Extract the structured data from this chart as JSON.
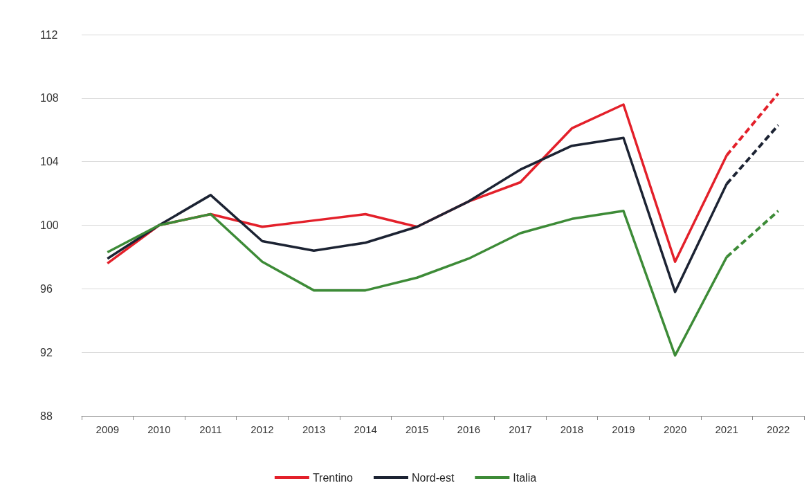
{
  "chart_data": {
    "type": "line",
    "categories": [
      "2009",
      "2010",
      "2011",
      "2012",
      "2013",
      "2014",
      "2015",
      "2016",
      "2017",
      "2018",
      "2019",
      "2020",
      "2021",
      "2022"
    ],
    "series": [
      {
        "name": "Trentino",
        "color": "#e3202a",
        "values": [
          97.6,
          100,
          100.7,
          99.9,
          100.3,
          100.7,
          99.9,
          101.5,
          102.7,
          106.1,
          107.6,
          97.7,
          104.4,
          null
        ]
      },
      {
        "name": "Nord-est",
        "color": "#1c2333",
        "values": [
          97.9,
          100,
          101.9,
          99.0,
          98.4,
          98.9,
          99.9,
          101.5,
          103.5,
          105.0,
          105.5,
          95.8,
          102.6,
          null
        ]
      },
      {
        "name": "Italia",
        "color": "#3d8b37",
        "values": [
          98.3,
          100,
          100.7,
          97.7,
          95.9,
          95.9,
          96.7,
          97.9,
          99.5,
          100.4,
          100.9,
          91.8,
          98.0,
          null
        ]
      },
      {
        "color": "#e3202a",
        "line_style": "dashed",
        "values": [
          null,
          null,
          null,
          null,
          null,
          null,
          null,
          null,
          null,
          null,
          null,
          null,
          104.4,
          108.3
        ]
      },
      {
        "color": "#1c2333",
        "line_style": "dashed",
        "values": [
          null,
          null,
          null,
          null,
          null,
          null,
          null,
          null,
          null,
          null,
          null,
          null,
          102.6,
          106.3
        ]
      },
      {
        "color": "#3d8b37",
        "line_style": "dashed",
        "values": [
          null,
          null,
          null,
          null,
          null,
          null,
          null,
          null,
          null,
          null,
          null,
          null,
          98.0,
          100.9
        ]
      }
    ],
    "ylim": [
      88,
      112
    ],
    "yticks": [
      88,
      92,
      96,
      100,
      104,
      108,
      112
    ],
    "grid": "y",
    "legend": "bottom",
    "marker": "none",
    "line_style": "solid"
  }
}
